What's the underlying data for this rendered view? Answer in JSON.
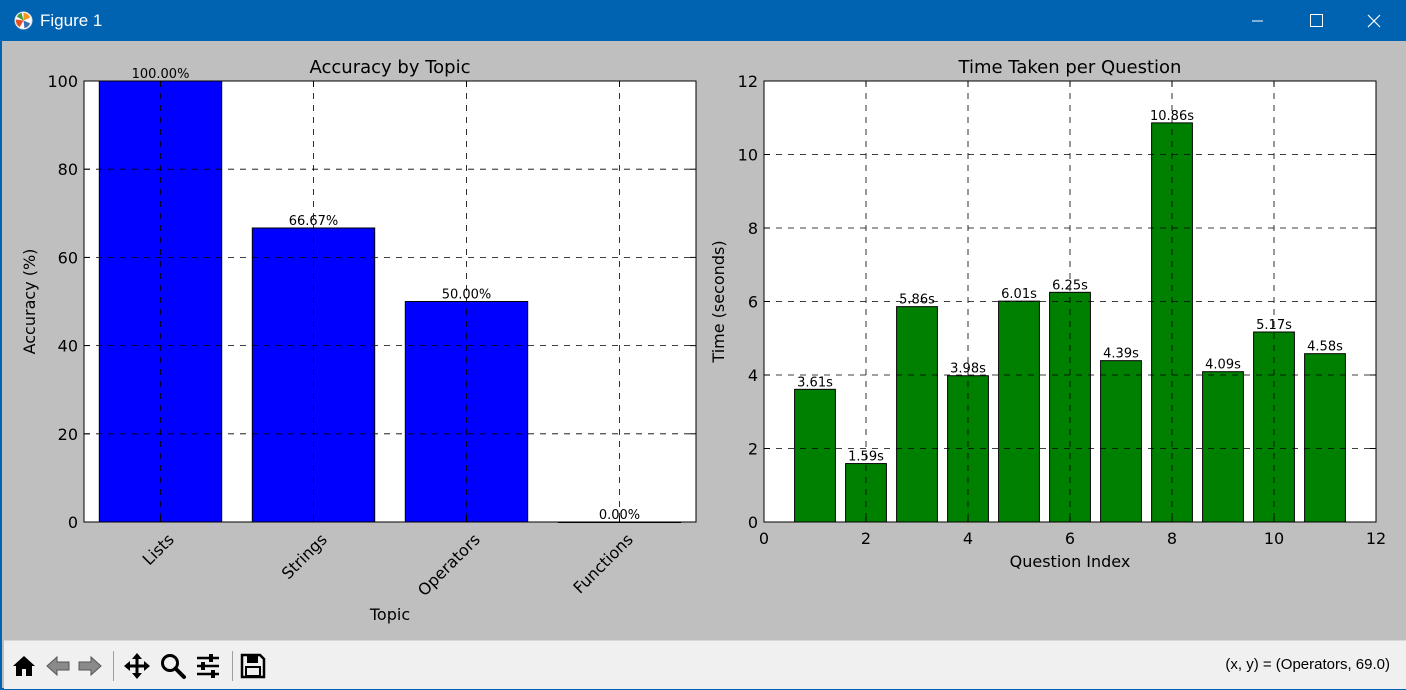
{
  "window": {
    "title": "Figure 1",
    "app_icon": "matplotlib-icon",
    "controls": [
      "minimize-icon",
      "maximize-icon",
      "close-icon"
    ]
  },
  "toolbar": {
    "tools": [
      "home-icon",
      "back-arrow-icon",
      "forward-arrow-icon",
      "pan-move-icon",
      "zoom-magnifier-icon",
      "configure-subplots-icon",
      "save-icon"
    ],
    "coordinates": "(x, y) = (Operators, 69.0)"
  },
  "colors": {
    "accuracy_bar": "#0000ff",
    "time_bar": "#008000",
    "titlebar": "#0063b1",
    "figure_bg": "#bfbfbf"
  },
  "chart_data": [
    {
      "type": "bar",
      "title": "Accuracy by Topic",
      "xlabel": "Topic",
      "ylabel": "Accuracy (%)",
      "categories": [
        "Lists",
        "Strings",
        "Operators",
        "Functions"
      ],
      "values": [
        100.0,
        66.67,
        50.0,
        0.0
      ],
      "data_labels": [
        "100.00%",
        "66.67%",
        "50.00%",
        "0.00%"
      ],
      "ylim": [
        0,
        100
      ],
      "yticks": [
        0,
        20,
        40,
        60,
        80,
        100
      ],
      "grid": true,
      "tick_rotation": 45
    },
    {
      "type": "bar",
      "title": "Time Taken per Question",
      "xlabel": "Question Index",
      "ylabel": "Time (seconds)",
      "x": [
        1,
        2,
        3,
        4,
        5,
        6,
        7,
        8,
        9,
        10,
        11
      ],
      "values": [
        3.61,
        1.59,
        5.86,
        3.98,
        6.01,
        6.25,
        4.39,
        10.86,
        4.09,
        5.17,
        4.58
      ],
      "data_labels": [
        "3.61s",
        "1.59s",
        "5.86s",
        "3.98s",
        "6.01s",
        "6.25s",
        "4.39s",
        "10.86s",
        "4.09s",
        "5.17s",
        "4.58s"
      ],
      "xlim": [
        0,
        12
      ],
      "ylim": [
        0,
        12
      ],
      "xticks": [
        0,
        2,
        4,
        6,
        8,
        10,
        12
      ],
      "yticks": [
        0,
        2,
        4,
        6,
        8,
        10,
        12
      ],
      "grid": true
    }
  ]
}
